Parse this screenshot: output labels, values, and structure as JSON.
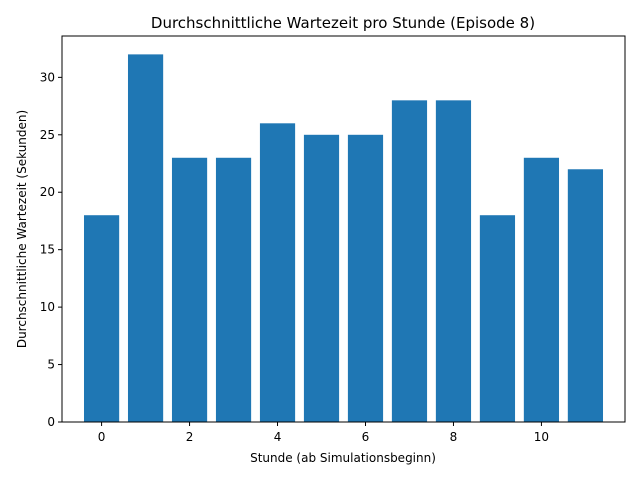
{
  "chart_data": {
    "type": "bar",
    "title": "Durchschnittliche Wartezeit pro Stunde (Episode 8)",
    "xlabel": "Stunde (ab Simulationsbeginn)",
    "ylabel": "Durchschnittliche Wartezeit (Sekunden)",
    "x": [
      0,
      1,
      2,
      3,
      4,
      5,
      6,
      7,
      8,
      9,
      10,
      11
    ],
    "values": [
      18,
      32,
      23,
      23,
      26,
      25,
      25,
      28,
      28,
      18,
      23,
      22
    ],
    "xlim": [
      -0.9,
      11.9
    ],
    "ylim": [
      0,
      33.6
    ],
    "xticks": [
      0,
      2,
      4,
      6,
      8,
      10
    ],
    "yticks": [
      0,
      5,
      10,
      15,
      20,
      25,
      30
    ],
    "bar_color": "#1f77b4",
    "grid": false,
    "legend": false
  }
}
